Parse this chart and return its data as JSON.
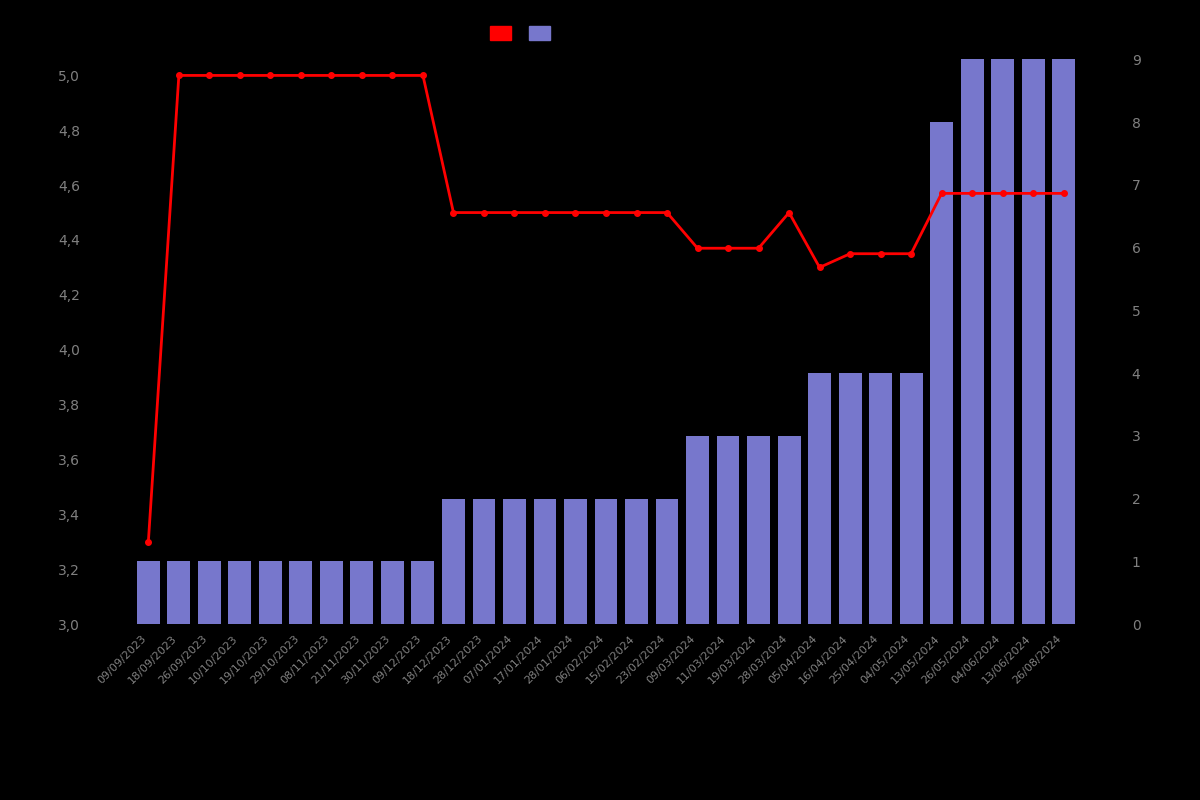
{
  "background_color": "#000000",
  "text_color": "#808080",
  "bar_color": "#7777cc",
  "line_color": "#ff0000",
  "dates": [
    "09/09/2023",
    "18/09/2023",
    "26/09/2023",
    "10/10/2023",
    "19/10/2023",
    "29/10/2023",
    "08/11/2023",
    "21/11/2023",
    "30/11/2023",
    "09/12/2023",
    "18/12/2023",
    "28/12/2023",
    "07/01/2024",
    "17/01/2024",
    "28/01/2024",
    "06/02/2024",
    "15/02/2024",
    "23/02/2024",
    "09/03/2024",
    "11/03/2024",
    "19/03/2024",
    "28/03/2024",
    "05/04/2024",
    "16/04/2024",
    "25/04/2024",
    "04/05/2024",
    "13/05/2024",
    "26/05/2024",
    "04/06/2024",
    "13/06/2024",
    "26/08/2024"
  ],
  "bar_values": [
    1,
    1,
    1,
    1,
    1,
    1,
    1,
    1,
    1,
    1,
    2,
    2,
    2,
    2,
    2,
    2,
    2,
    2,
    3,
    3,
    3,
    3,
    4,
    4,
    4,
    4,
    8,
    9,
    9,
    9,
    9
  ],
  "line_values": [
    3.3,
    5.0,
    5.0,
    5.0,
    5.0,
    5.0,
    5.0,
    5.0,
    5.0,
    5.0,
    4.5,
    4.5,
    4.5,
    4.5,
    4.5,
    4.5,
    4.5,
    4.5,
    4.37,
    4.37,
    4.37,
    4.5,
    4.3,
    4.35,
    4.35,
    4.35,
    4.57,
    4.57,
    4.57,
    4.57,
    4.57
  ],
  "ylim_left": [
    3.0,
    5.1
  ],
  "ylim_right": [
    0,
    9.18
  ],
  "yticks_left": [
    3.0,
    3.2,
    3.4,
    3.6,
    3.8,
    4.0,
    4.2,
    4.4,
    4.6,
    4.8,
    5.0
  ],
  "yticks_right": [
    0,
    1,
    2,
    3,
    4,
    5,
    6,
    7,
    8,
    9
  ],
  "figsize": [
    12.0,
    8.0
  ],
  "dpi": 100
}
